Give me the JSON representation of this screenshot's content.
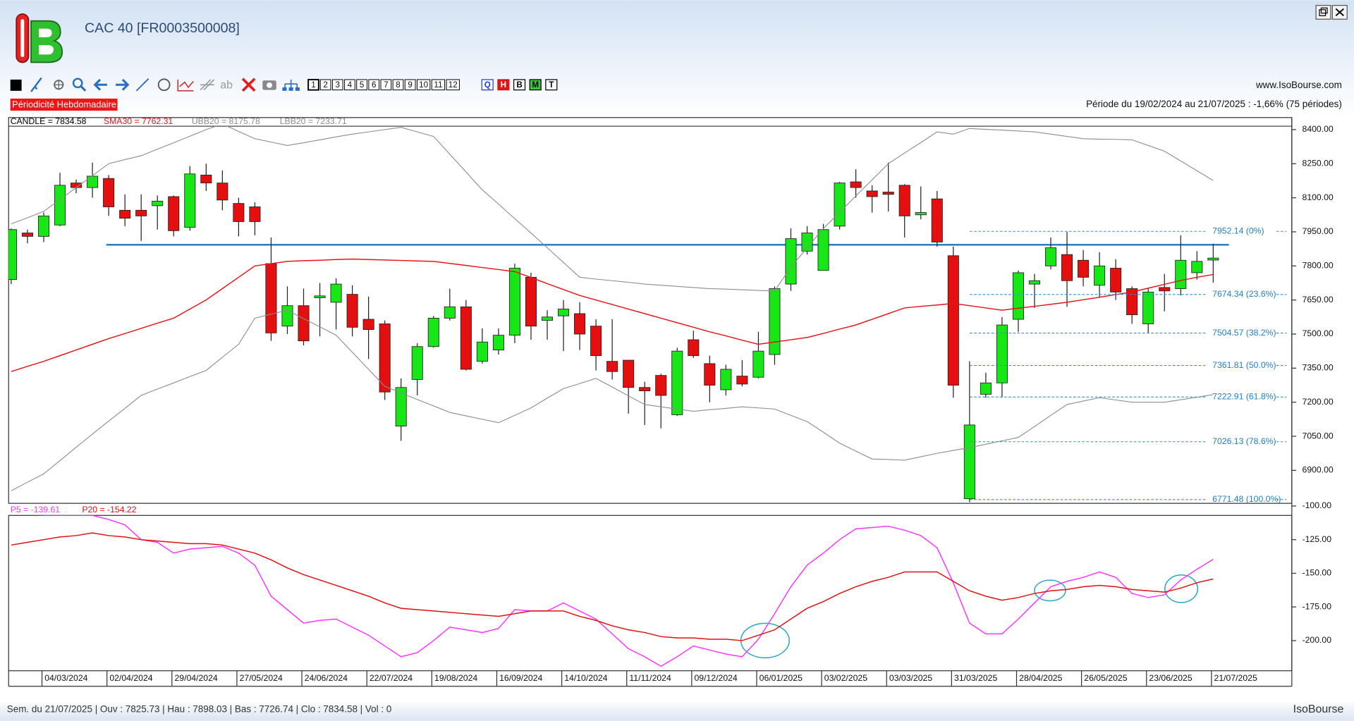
{
  "header": {
    "title": "CAC 40 [FR0003500008]",
    "website": "www.IsoBourse.com",
    "period": "Période du 19/02/2024 au 21/07/2025 : -1,66% (75 périodes)",
    "periodicity": "Périodicité Hebdomadaire"
  },
  "toolbar": {
    "text_tool": "ab",
    "periods": [
      "1",
      "2",
      "3",
      "4",
      "5",
      "6",
      "7",
      "8",
      "9",
      "10",
      "11",
      "12"
    ],
    "views": [
      "Q",
      "H",
      "B",
      "M",
      "T"
    ]
  },
  "footer": {
    "status": "Sem. du 21/07/2025 | Ouv : 7825.73 | Hau : 7898.03 | Bas : 7726.74 | Clo : 7834.58 | Vol : 0",
    "brand": "IsoBourse"
  },
  "chart_data": [
    {
      "type": "candlestick",
      "categories": [
        null,
        null,
        "04/03/2024",
        null,
        null,
        null,
        "02/04/2024",
        null,
        null,
        null,
        "29/04/2024",
        null,
        null,
        null,
        "27/05/2024",
        null,
        null,
        null,
        "24/06/2024",
        null,
        null,
        null,
        "22/07/2024",
        null,
        null,
        null,
        "19/08/2024",
        null,
        null,
        null,
        "16/09/2024",
        null,
        null,
        null,
        "14/10/2024",
        null,
        null,
        null,
        "11/11/2024",
        null,
        null,
        null,
        "09/12/2024",
        null,
        null,
        null,
        "06/01/2025",
        null,
        null,
        null,
        "03/02/2025",
        null,
        null,
        null,
        "03/03/2025",
        null,
        null,
        null,
        "31/03/2025",
        null,
        null,
        null,
        "28/04/2025",
        null,
        null,
        null,
        "26/05/2025",
        null,
        null,
        null,
        "23/06/2025",
        null,
        null,
        null,
        "21/07/2025"
      ],
      "series": [
        {
          "name": "CANDLE = 7834.58",
          "type": "candlestick",
          "up_color": "#17e617",
          "down_color": "#e60f0f",
          "open": [
            7740,
            7945,
            7930,
            7980,
            8165,
            8145,
            8185,
            8045,
            8045,
            8065,
            8105,
            7970,
            8200,
            8165,
            8075,
            8060,
            7810,
            7535,
            7625,
            7660,
            7640,
            7675,
            7565,
            7545,
            7095,
            7300,
            7445,
            7570,
            7620,
            7380,
            7430,
            7495,
            7750,
            7560,
            7580,
            7590,
            7535,
            7380,
            7385,
            7265,
            7318,
            7145,
            7475,
            7370,
            7255,
            7315,
            7310,
            7410,
            7720,
            7865,
            7780,
            7975,
            8170,
            8130,
            8125,
            8155,
            8025,
            8095,
            7845,
            6775,
            7235,
            7285,
            7565,
            7720,
            7800,
            7850,
            7825,
            7715,
            7790,
            7700,
            7545,
            7705,
            7700,
            7770,
            7825.73
          ],
          "high": [
            7965,
            7960,
            8035,
            8210,
            8180,
            8255,
            8200,
            8115,
            8115,
            8110,
            8110,
            8240,
            8250,
            8220,
            8100,
            8080,
            7925,
            7710,
            7700,
            7725,
            7745,
            7715,
            7665,
            7560,
            7305,
            7460,
            7580,
            7700,
            7650,
            7525,
            7525,
            7810,
            7770,
            7605,
            7650,
            7640,
            7565,
            7565,
            7385,
            7290,
            7325,
            7440,
            7515,
            7405,
            7365,
            7385,
            7510,
            7710,
            7965,
            7975,
            7985,
            8170,
            8225,
            8155,
            8255,
            8160,
            8150,
            8130,
            7885,
            7380,
            7330,
            7575,
            7780,
            7765,
            7925,
            7950,
            7870,
            7860,
            7830,
            7710,
            7700,
            7765,
            7935,
            7865,
            7898.03
          ],
          "low": [
            7720,
            7900,
            7905,
            7975,
            8120,
            8100,
            8020,
            7975,
            7910,
            7960,
            7930,
            7955,
            8130,
            8045,
            7930,
            7935,
            7470,
            7500,
            7450,
            7490,
            7520,
            7490,
            7390,
            7210,
            7030,
            7230,
            7440,
            7560,
            7340,
            7370,
            7410,
            7460,
            7475,
            7475,
            7425,
            7430,
            7340,
            7300,
            7150,
            7100,
            7085,
            7140,
            7395,
            7200,
            7230,
            7270,
            7305,
            7365,
            7690,
            7850,
            7780,
            7960,
            8100,
            8035,
            8040,
            7925,
            8005,
            7885,
            7220,
            6760,
            7220,
            7220,
            7510,
            7615,
            7785,
            7620,
            7710,
            7660,
            7650,
            7545,
            7505,
            7600,
            7670,
            7740,
            7726.74
          ],
          "close": [
            7960,
            7930,
            8020,
            8155,
            8145,
            8195,
            8060,
            8010,
            8020,
            8085,
            7955,
            8205,
            8165,
            8090,
            7995,
            7995,
            7505,
            7625,
            7470,
            7668,
            7720,
            7530,
            7520,
            7245,
            7265,
            7445,
            7570,
            7620,
            7345,
            7465,
            7495,
            7790,
            7535,
            7575,
            7610,
            7500,
            7405,
            7335,
            7265,
            7250,
            7230,
            7425,
            7405,
            7275,
            7345,
            7280,
            7425,
            7700,
            7920,
            7945,
            7960,
            8165,
            8145,
            8105,
            8115,
            8020,
            8035,
            7905,
            7275,
            7100,
            7285,
            7540,
            7770,
            7735,
            7880,
            7735,
            7750,
            7800,
            7685,
            7585,
            7685,
            7690,
            7825,
            7820,
            7834.58
          ]
        },
        {
          "name": "SMA30 = 7762.31",
          "type": "line",
          "color": "#e8141a",
          "values": [
            7335,
            7358,
            7380,
            7405,
            7430,
            7455,
            7480,
            7502,
            7525,
            7548,
            7570,
            7610,
            7650,
            7700,
            7750,
            7800,
            7810,
            7820,
            7823,
            7825,
            7828,
            7830,
            7828,
            7826,
            7824,
            7822,
            7820,
            7811,
            7802,
            7793,
            7784,
            7775,
            7749,
            7722,
            7696,
            7670,
            7650,
            7630,
            7610,
            7590,
            7570,
            7550,
            7530,
            7510,
            7492,
            7473,
            7455,
            7465,
            7475,
            7485,
            7503,
            7522,
            7540,
            7565,
            7590,
            7615,
            7622,
            7628,
            7635,
            7625,
            7615,
            7605,
            7614,
            7622,
            7631,
            7640,
            7651,
            7662,
            7674,
            7685,
            7702,
            7719,
            7736,
            7750,
            7762.31
          ]
        },
        {
          "name": "UBB20 = 8175.78",
          "type": "line",
          "color": "#8c8c8c",
          "values": [
            7985,
            8012,
            8040,
            8092,
            8145,
            8197,
            8250,
            8268,
            8285,
            8314,
            8342,
            8371,
            8400,
            8425,
            8392,
            8360,
            8345,
            8330,
            8342,
            8355,
            8368,
            8380,
            8390,
            8400,
            8410,
            8390,
            8370,
            8292,
            8213,
            8135,
            8072,
            8008,
            7945,
            7880,
            7815,
            7750,
            7742,
            7735,
            7728,
            7720,
            7715,
            7710,
            7705,
            7700,
            7698,
            7695,
            7692,
            7690,
            7795,
            7880,
            7965,
            8036,
            8108,
            8179,
            8250,
            8297,
            8343,
            8390,
            8380,
            8405,
            8401,
            8398,
            8394,
            8390,
            8380,
            8370,
            8360,
            8358,
            8357,
            8355,
            8330,
            8305,
            8262,
            8219,
            8175.78
          ]
        },
        {
          "name": "LBB20 = 7233.71",
          "type": "line",
          "color": "#8c8c8c",
          "values": [
            6810,
            6848,
            6885,
            6943,
            7002,
            7060,
            7117,
            7173,
            7230,
            7258,
            7285,
            7313,
            7340,
            7398,
            7455,
            7570,
            7588,
            7605,
            7568,
            7532,
            7495,
            7420,
            7345,
            7270,
            7241,
            7212,
            7184,
            7155,
            7140,
            7125,
            7110,
            7142,
            7175,
            7218,
            7260,
            7282,
            7305,
            7267,
            7228,
            7190,
            7180,
            7170,
            7160,
            7167,
            7173,
            7180,
            7175,
            7170,
            7142,
            7115,
            7068,
            7020,
            6985,
            6950,
            6948,
            6945,
            6960,
            6975,
            6988,
            7000,
            7015,
            7030,
            7045,
            7093,
            7142,
            7190,
            7205,
            7220,
            7210,
            7200,
            7200,
            7200,
            7211,
            7222,
            7233.71
          ]
        }
      ],
      "ylim": [
        6755,
        8453
      ],
      "yticks": [
        {
          "value": 8400,
          "label": "8400.00"
        },
        {
          "value": 8250,
          "label": "8250.00"
        },
        {
          "value": 8100,
          "label": "8100.00"
        },
        {
          "value": 7950,
          "label": "7950.00"
        },
        {
          "value": 7800,
          "label": "7800.00"
        },
        {
          "value": 7650,
          "label": "7650.00"
        },
        {
          "value": 7500,
          "label": "7500.00"
        },
        {
          "value": 7350,
          "label": "7350.00"
        },
        {
          "value": 7200,
          "label": "7200.00"
        },
        {
          "value": 7050,
          "label": "7050.00"
        },
        {
          "value": 6900,
          "label": "6900.00"
        }
      ],
      "support_line": {
        "value": 7893,
        "color": "#1c78c0"
      },
      "fibonacci": [
        {
          "value": 7952.14,
          "label": "7952.14 (0%)"
        },
        {
          "value": 7674.34,
          "label": "7674.34 (23.6%)"
        },
        {
          "value": 7504.57,
          "label": "7504.57 (38.2%)"
        },
        {
          "value": 7361.81,
          "label": "7361.81 (50.0%)"
        },
        {
          "value": 7222.91,
          "label": "7222.91 (61.8%)"
        },
        {
          "value": 7026.13,
          "label": "7026.13 (78.6%)"
        },
        {
          "value": 6771.48,
          "label": "6771.48 (100.0%)"
        }
      ]
    },
    {
      "type": "line",
      "series": [
        {
          "name": "P5 = -139.61",
          "color": "#ff33ff",
          "values": [
            -106,
            -106,
            -107,
            -107,
            -107,
            -107,
            -110,
            -114,
            -125,
            -127,
            -135,
            -132,
            -131,
            -130,
            -135,
            -144,
            -167,
            -177,
            -187,
            -185,
            -184,
            -190,
            -196,
            -204,
            -212,
            -209,
            -200,
            -190,
            -192,
            -194,
            -191,
            -177,
            -178,
            -178,
            -172,
            -178,
            -184,
            -195,
            -206,
            -212,
            -219,
            -212,
            -204,
            -207,
            -210,
            -212,
            -199,
            -180,
            -160,
            -144,
            -135,
            -125,
            -117,
            -116,
            -115,
            -118,
            -122,
            -131,
            -157,
            -187,
            -195,
            -195,
            -184,
            -172,
            -160,
            -156,
            -153,
            -149,
            -153,
            -165,
            -168,
            -166,
            -155,
            -147,
            -139.61
          ]
        },
        {
          "name": "P20 = -154.22",
          "color": "#e01010",
          "values": [
            -129,
            -127,
            -125,
            -123,
            -122,
            -120,
            -122,
            -123,
            -125,
            -126,
            -127,
            -128,
            -128,
            -129,
            -132,
            -135,
            -140,
            -146,
            -151,
            -155,
            -159,
            -163,
            -167,
            -172,
            -176,
            -177,
            -178,
            -179,
            -180,
            -181,
            -182,
            -180,
            -178,
            -178,
            -178,
            -182,
            -185,
            -189,
            -192,
            -194,
            -197,
            -198,
            -198,
            -199,
            -199,
            -200,
            -196,
            -192,
            -184,
            -176,
            -171,
            -165,
            -160,
            -156,
            -153,
            -149,
            -149,
            -149,
            -156,
            -163,
            -167,
            -170,
            -168,
            -165,
            -163,
            -162,
            -160,
            -159,
            -160,
            -162,
            -163,
            -164,
            -161,
            -157,
            -154.22
          ]
        }
      ],
      "ylim": [
        -222.4,
        -107
      ],
      "yticks": [
        {
          "value": -100,
          "label": "-100.00"
        },
        {
          "value": -125,
          "label": "-125.00"
        },
        {
          "value": -150,
          "label": "-150.00"
        },
        {
          "value": -175,
          "label": "-175.00"
        },
        {
          "value": -200,
          "label": "-200.00"
        }
      ]
    }
  ]
}
